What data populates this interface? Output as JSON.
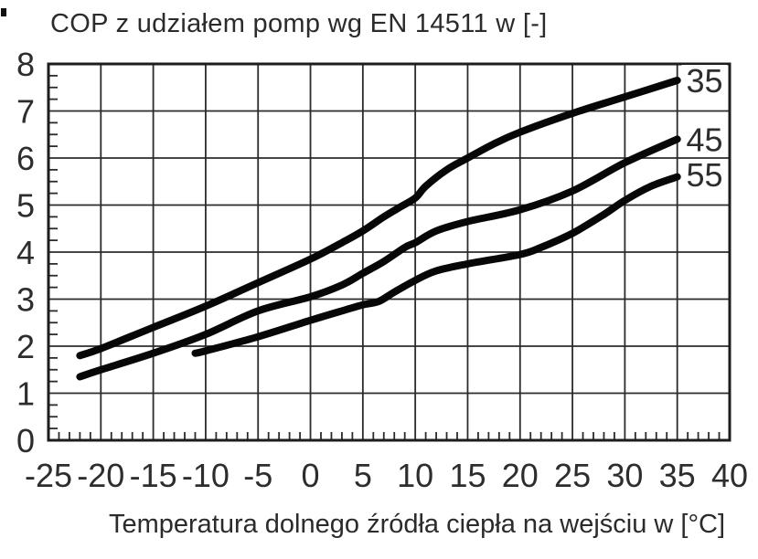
{
  "chart_data": {
    "type": "line",
    "title": "COP z udziałem pomp wg EN 14511 w [-]",
    "xlabel": "Temperatura dolnego źródła ciepła na wejściu w [°C]",
    "ylabel": "",
    "xlim": [
      -25,
      40
    ],
    "ylim": [
      0,
      8
    ],
    "x_ticks": [
      -25,
      -20,
      -15,
      -10,
      -5,
      0,
      5,
      10,
      15,
      20,
      25,
      30,
      35,
      40
    ],
    "y_ticks": [
      0,
      1,
      2,
      3,
      4,
      5,
      6,
      7,
      8
    ],
    "x_minor_tick_step": 1,
    "y_minor_tick_step": 0.25,
    "grid": "major",
    "legend_position": "inline-right-labels",
    "colors": {
      "line": "#070707",
      "grid": "#2b2b2b",
      "frame": "#1d1d1d",
      "text": "#2d2d2d",
      "background": "#ffffff"
    },
    "series": [
      {
        "name": "35",
        "label_pos": [
          37.6,
          7.65
        ],
        "points": [
          [
            -22,
            1.8
          ],
          [
            -20,
            1.95
          ],
          [
            -15,
            2.4
          ],
          [
            -10,
            2.85
          ],
          [
            -5,
            3.35
          ],
          [
            0,
            3.85
          ],
          [
            3,
            4.2
          ],
          [
            5,
            4.45
          ],
          [
            7,
            4.75
          ],
          [
            8.5,
            4.95
          ],
          [
            10,
            5.15
          ],
          [
            11,
            5.4
          ],
          [
            13,
            5.75
          ],
          [
            15,
            6.0
          ],
          [
            17.5,
            6.3
          ],
          [
            20,
            6.55
          ],
          [
            25,
            6.95
          ],
          [
            30,
            7.3
          ],
          [
            35,
            7.65
          ]
        ]
      },
      {
        "name": "45",
        "label_pos": [
          37.6,
          6.4
        ],
        "points": [
          [
            -22,
            1.35
          ],
          [
            -20,
            1.5
          ],
          [
            -15,
            1.85
          ],
          [
            -10,
            2.25
          ],
          [
            -5,
            2.75
          ],
          [
            0,
            3.05
          ],
          [
            3,
            3.3
          ],
          [
            5,
            3.55
          ],
          [
            7,
            3.8
          ],
          [
            9,
            4.1
          ],
          [
            10,
            4.2
          ],
          [
            12,
            4.45
          ],
          [
            15,
            4.65
          ],
          [
            20,
            4.9
          ],
          [
            25,
            5.3
          ],
          [
            30,
            5.9
          ],
          [
            35,
            6.4
          ]
        ]
      },
      {
        "name": "55",
        "label_pos": [
          37.6,
          5.65
        ],
        "points": [
          [
            -11,
            1.85
          ],
          [
            -10,
            1.9
          ],
          [
            -5,
            2.2
          ],
          [
            0,
            2.55
          ],
          [
            3,
            2.75
          ],
          [
            5,
            2.88
          ],
          [
            6.5,
            2.95
          ],
          [
            8,
            3.15
          ],
          [
            10,
            3.4
          ],
          [
            12,
            3.6
          ],
          [
            15,
            3.75
          ],
          [
            20,
            3.95
          ],
          [
            22,
            4.1
          ],
          [
            25,
            4.4
          ],
          [
            28,
            4.8
          ],
          [
            30,
            5.1
          ],
          [
            32.5,
            5.4
          ],
          [
            35,
            5.6
          ]
        ]
      }
    ]
  }
}
